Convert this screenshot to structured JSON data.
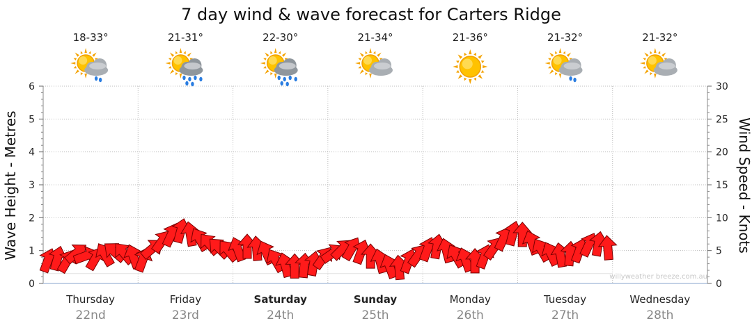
{
  "chart_data": {
    "type": "line",
    "title": "7 day wind & wave forecast for Carters Ridge",
    "ylabel_left": "Wave Height - Metres",
    "ylabel_right": "Wind Speed - Knots",
    "ylim_left": [
      0,
      6
    ],
    "ylim_right": [
      0,
      30
    ],
    "yticks_left": [
      "0",
      "1",
      "2",
      "3",
      "4",
      "5",
      "6"
    ],
    "yticks_right": [
      "0",
      "5",
      "10",
      "15",
      "20",
      "25",
      "30"
    ],
    "grid": true,
    "days": [
      {
        "name": "Thursday",
        "date": "22nd",
        "temp": "18-33°",
        "icon": "sun-cloud-light-rain-icon",
        "bold": false
      },
      {
        "name": "Friday",
        "date": "23rd",
        "temp": "21-31°",
        "icon": "sun-cloud-rain-icon",
        "bold": false
      },
      {
        "name": "Saturday",
        "date": "24th",
        "temp": "22-30°",
        "icon": "sun-cloud-rain-icon",
        "bold": true
      },
      {
        "name": "Sunday",
        "date": "25th",
        "temp": "21-34°",
        "icon": "sun-cloud-icon",
        "bold": true
      },
      {
        "name": "Monday",
        "date": "26th",
        "temp": "21-36°",
        "icon": "sun-icon",
        "bold": false
      },
      {
        "name": "Tuesday",
        "date": "27th",
        "temp": "21-32°",
        "icon": "sun-cloud-light-rain-icon",
        "bold": false
      },
      {
        "name": "Wednesday",
        "date": "28th",
        "temp": "21-32°",
        "icon": "sun-cloud-icon",
        "bold": false
      }
    ],
    "series": [
      {
        "name": "wind",
        "unit": "knots",
        "color": "#ff0000",
        "arrow_color": "#ff1a1a",
        "points": [
          {
            "day": 0.0,
            "speed": 3.5,
            "dir": 200
          },
          {
            "day": 0.1,
            "speed": 3.8,
            "dir": 195
          },
          {
            "day": 0.2,
            "speed": 3.4,
            "dir": 210
          },
          {
            "day": 0.3,
            "speed": 4.6,
            "dir": 230
          },
          {
            "day": 0.4,
            "speed": 4.2,
            "dir": 250
          },
          {
            "day": 0.5,
            "speed": 3.8,
            "dir": 210
          },
          {
            "day": 0.6,
            "speed": 4.4,
            "dir": 150
          },
          {
            "day": 0.7,
            "speed": 4.8,
            "dir": 130
          },
          {
            "day": 0.8,
            "speed": 4.6,
            "dir": 140
          },
          {
            "day": 0.9,
            "speed": 4.1,
            "dir": 160
          },
          {
            "day": 1.0,
            "speed": 3.6,
            "dir": 200
          },
          {
            "day": 1.1,
            "speed": 5.3,
            "dir": 230
          },
          {
            "day": 1.2,
            "speed": 6.4,
            "dir": 215
          },
          {
            "day": 1.3,
            "speed": 7.4,
            "dir": 205
          },
          {
            "day": 1.4,
            "speed": 8.0,
            "dir": 195
          },
          {
            "day": 1.5,
            "speed": 7.5,
            "dir": 170
          },
          {
            "day": 1.6,
            "speed": 6.7,
            "dir": 150
          },
          {
            "day": 1.7,
            "speed": 6.0,
            "dir": 140
          },
          {
            "day": 1.8,
            "speed": 5.4,
            "dir": 135
          },
          {
            "day": 1.9,
            "speed": 5.0,
            "dir": 140
          },
          {
            "day": 2.0,
            "speed": 5.2,
            "dir": 160
          },
          {
            "day": 2.1,
            "speed": 5.6,
            "dir": 180
          },
          {
            "day": 2.2,
            "speed": 5.3,
            "dir": 175
          },
          {
            "day": 2.3,
            "speed": 4.7,
            "dir": 155
          },
          {
            "day": 2.4,
            "speed": 3.5,
            "dir": 150
          },
          {
            "day": 2.5,
            "speed": 2.8,
            "dir": 165
          },
          {
            "day": 2.6,
            "speed": 2.6,
            "dir": 180
          },
          {
            "day": 2.7,
            "speed": 2.7,
            "dir": 185
          },
          {
            "day": 2.8,
            "speed": 3.0,
            "dir": 190
          },
          {
            "day": 2.9,
            "speed": 3.9,
            "dir": 215
          },
          {
            "day": 3.0,
            "speed": 4.6,
            "dir": 235
          },
          {
            "day": 3.1,
            "speed": 5.2,
            "dir": 225
          },
          {
            "day": 3.2,
            "speed": 5.3,
            "dir": 210
          },
          {
            "day": 3.3,
            "speed": 4.8,
            "dir": 200
          },
          {
            "day": 3.4,
            "speed": 4.1,
            "dir": 180
          },
          {
            "day": 3.5,
            "speed": 3.4,
            "dir": 165
          },
          {
            "day": 3.6,
            "speed": 2.6,
            "dir": 160
          },
          {
            "day": 3.7,
            "speed": 2.4,
            "dir": 175
          },
          {
            "day": 3.8,
            "speed": 3.4,
            "dir": 200
          },
          {
            "day": 3.9,
            "speed": 4.3,
            "dir": 215
          },
          {
            "day": 4.0,
            "speed": 5.2,
            "dir": 200
          },
          {
            "day": 4.1,
            "speed": 5.6,
            "dir": 190
          },
          {
            "day": 4.2,
            "speed": 5.0,
            "dir": 165
          },
          {
            "day": 4.3,
            "speed": 4.2,
            "dir": 150
          },
          {
            "day": 4.4,
            "speed": 3.6,
            "dir": 160
          },
          {
            "day": 4.5,
            "speed": 3.4,
            "dir": 180
          },
          {
            "day": 4.6,
            "speed": 4.1,
            "dir": 200
          },
          {
            "day": 4.7,
            "speed": 5.4,
            "dir": 215
          },
          {
            "day": 4.8,
            "speed": 6.8,
            "dir": 205
          },
          {
            "day": 4.9,
            "speed": 7.6,
            "dir": 195
          },
          {
            "day": 5.0,
            "speed": 7.4,
            "dir": 180
          },
          {
            "day": 5.1,
            "speed": 6.2,
            "dir": 160
          },
          {
            "day": 5.2,
            "speed": 5.1,
            "dir": 150
          },
          {
            "day": 5.3,
            "speed": 4.5,
            "dir": 155
          },
          {
            "day": 5.4,
            "speed": 4.3,
            "dir": 170
          },
          {
            "day": 5.5,
            "speed": 4.5,
            "dir": 185
          },
          {
            "day": 5.6,
            "speed": 5.0,
            "dir": 200
          },
          {
            "day": 5.7,
            "speed": 5.9,
            "dir": 205
          },
          {
            "day": 5.8,
            "speed": 6.0,
            "dir": 190
          },
          {
            "day": 5.9,
            "speed": 5.4,
            "dir": 175
          }
        ]
      },
      {
        "name": "waves",
        "unit": "metres",
        "color": "#aaaaaa",
        "points": [
          {
            "day": 0.0,
            "height": 0.3
          },
          {
            "day": 0.5,
            "height": 0.3
          },
          {
            "day": 1.0,
            "height": 0.3
          },
          {
            "day": 1.5,
            "height": 0.3
          },
          {
            "day": 2.0,
            "height": 0.3
          },
          {
            "day": 2.5,
            "height": 0.3
          },
          {
            "day": 3.0,
            "height": 0.3
          },
          {
            "day": 3.5,
            "height": 0.3
          },
          {
            "day": 4.0,
            "height": 0.3
          },
          {
            "day": 4.5,
            "height": 0.3
          },
          {
            "day": 5.0,
            "height": 0.3
          },
          {
            "day": 5.5,
            "height": 0.3
          },
          {
            "day": 6.0,
            "height": 0.3
          }
        ]
      }
    ],
    "watermark": "willyweather breeze.com.au"
  }
}
